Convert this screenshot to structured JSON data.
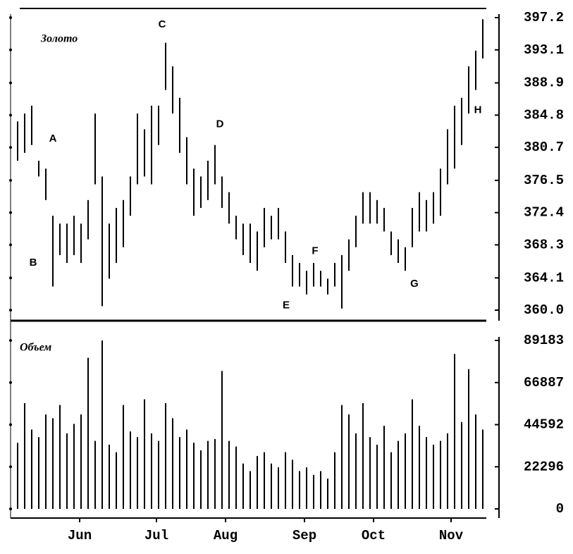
{
  "chart_data": [
    {
      "type": "range-bar",
      "title": "Золото",
      "x": [
        0,
        1,
        2,
        3,
        4,
        5,
        6,
        7,
        8,
        9,
        10,
        11,
        12,
        13,
        14,
        15,
        16,
        17,
        18,
        19,
        20,
        21,
        22,
        23,
        24,
        25,
        26,
        27,
        28,
        29,
        30,
        31,
        32,
        33,
        34,
        35,
        36,
        37,
        38,
        39,
        40,
        41,
        42,
        43,
        44,
        45,
        46,
        47,
        48,
        49,
        50,
        51,
        52,
        53,
        54,
        55,
        56,
        57,
        58,
        59,
        60,
        61,
        62,
        63,
        64,
        65,
        66
      ],
      "high": [
        384,
        385,
        386,
        379,
        378,
        372,
        371,
        371,
        372,
        371,
        374,
        385,
        377,
        371,
        373,
        374,
        377,
        385,
        383,
        386,
        386,
        394,
        391,
        387,
        382,
        378,
        377,
        379,
        381,
        377,
        375,
        372,
        371,
        371,
        370,
        373,
        372,
        373,
        370,
        367,
        366,
        365,
        366,
        365,
        364,
        366,
        367,
        369,
        372,
        375,
        375,
        374,
        373,
        370,
        369,
        368,
        373,
        375,
        374,
        375,
        378,
        383,
        386,
        387,
        391,
        393,
        397
      ],
      "low": [
        379,
        380,
        381,
        377,
        374,
        363,
        367,
        366,
        367,
        366,
        369,
        376,
        360.5,
        364,
        366,
        368,
        372,
        376,
        377,
        376,
        381,
        388,
        385,
        380,
        376,
        372,
        373,
        374,
        376,
        373,
        371,
        369,
        367,
        366,
        365,
        368,
        369,
        369,
        366,
        363,
        363,
        362,
        363,
        363,
        362,
        363,
        360.2,
        365,
        368,
        371,
        371,
        371,
        370,
        367,
        366,
        365,
        368,
        370,
        370,
        371,
        372,
        376,
        378,
        381,
        385,
        388,
        392
      ],
      "xlim": [
        -1,
        66.5
      ],
      "ylim": [
        360,
        397.2
      ],
      "yticks": [
        {
          "value": 360,
          "label": "360.0"
        },
        364.1,
        368.3,
        372.4,
        376.5,
        380.7,
        384.8,
        388.9,
        393.1,
        397.2
      ],
      "annotations": [
        {
          "label": "A",
          "x": 5,
          "y": 381.8
        },
        {
          "label": "B",
          "x": 2.2,
          "y": 366
        },
        {
          "label": "C",
          "x": 20.5,
          "y": 396.3
        },
        {
          "label": "D",
          "x": 28.7,
          "y": 383.6
        },
        {
          "label": "E",
          "x": 38.1,
          "y": 360.6
        },
        {
          "label": "F",
          "x": 42.2,
          "y": 367.5
        },
        {
          "label": "G",
          "x": 56.3,
          "y": 363.3
        },
        {
          "label": "H",
          "x": 65.3,
          "y": 385.4
        }
      ]
    },
    {
      "type": "bar",
      "title": "Объем",
      "x": [
        0,
        1,
        2,
        3,
        4,
        5,
        6,
        7,
        8,
        9,
        10,
        11,
        12,
        13,
        14,
        15,
        16,
        17,
        18,
        19,
        20,
        21,
        22,
        23,
        24,
        25,
        26,
        27,
        28,
        29,
        30,
        31,
        32,
        33,
        34,
        35,
        36,
        37,
        38,
        39,
        40,
        41,
        42,
        43,
        44,
        45,
        46,
        47,
        48,
        49,
        50,
        51,
        52,
        53,
        54,
        55,
        56,
        57,
        58,
        59,
        60,
        61,
        62,
        63,
        64,
        65,
        66
      ],
      "values": [
        35000,
        56000,
        42000,
        38000,
        50000,
        48000,
        55000,
        40000,
        45000,
        50000,
        80000,
        36000,
        89183,
        34000,
        30000,
        55000,
        41000,
        38000,
        58000,
        40000,
        36000,
        56000,
        48000,
        38000,
        42000,
        35000,
        31000,
        36000,
        37000,
        73000,
        36000,
        33000,
        24000,
        20000,
        28000,
        30000,
        24000,
        22000,
        30000,
        26000,
        20000,
        22000,
        18000,
        20000,
        16000,
        30000,
        55000,
        50000,
        40000,
        56000,
        38000,
        34000,
        44000,
        30000,
        36000,
        40000,
        58000,
        44000,
        38000,
        34000,
        36000,
        40000,
        82000,
        46000,
        74000,
        50000,
        42000
      ],
      "xlim": [
        -1,
        66.5
      ],
      "ylim": [
        0,
        89183
      ],
      "yticks": [
        0,
        22296,
        44592,
        66887,
        89183
      ],
      "xticks": [
        {
          "value": 8.8,
          "label": "Jun"
        },
        {
          "value": 19.7,
          "label": "Jul"
        },
        {
          "value": 29.5,
          "label": "Aug"
        },
        {
          "value": 40.7,
          "label": "Sep"
        },
        {
          "value": 50.5,
          "label": "Oct"
        },
        {
          "value": 61.5,
          "label": "Nov"
        }
      ]
    }
  ]
}
